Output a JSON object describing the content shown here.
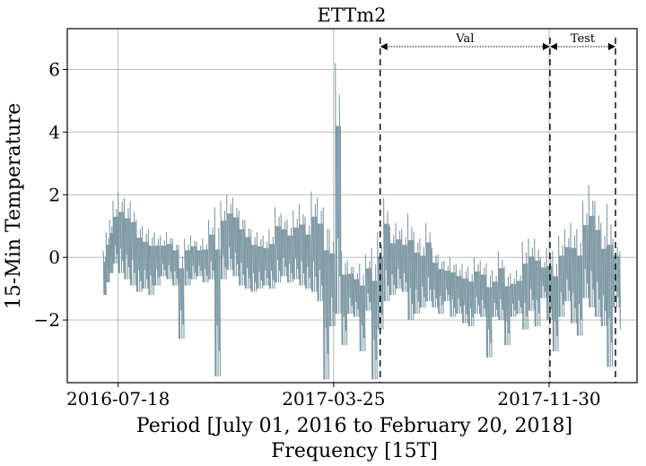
{
  "chart_data": {
    "type": "line",
    "title": "ETTm2",
    "xlabel": "Period [July 01, 2016 to February 20, 2018]",
    "xlabel2": "Frequency [15T]",
    "ylabel": "15-Min Temperature",
    "grid": true,
    "x_range": [
      "2016-07-01",
      "2018-02-20"
    ],
    "xlim": [
      "2016-05-20",
      "2018-03-12"
    ],
    "ylim": [
      -4.0,
      7.3
    ],
    "x_ticks": [
      "2016-07-18",
      "2017-03-25",
      "2017-11-30"
    ],
    "y_ticks": [
      -2,
      0,
      2,
      4,
      6
    ],
    "y_tick_labels": [
      "−2",
      "0",
      "2",
      "4",
      "6"
    ],
    "series": [
      {
        "color": "#7f9aa5",
        "x": [
          "2016-07-01",
          "2016-07-04",
          "2016-07-08",
          "2016-07-12",
          "2016-07-18",
          "2016-07-25",
          "2016-08-01",
          "2016-08-08",
          "2016-08-15",
          "2016-08-22",
          "2016-08-29",
          "2016-09-05",
          "2016-09-12",
          "2016-09-19",
          "2016-09-26",
          "2016-10-03",
          "2016-10-10",
          "2016-10-17",
          "2016-10-24",
          "2016-10-31",
          "2016-11-07",
          "2016-11-14",
          "2016-11-21",
          "2016-11-28",
          "2016-12-05",
          "2016-12-12",
          "2016-12-19",
          "2016-12-26",
          "2017-01-02",
          "2017-01-09",
          "2017-01-16",
          "2017-01-23",
          "2017-01-30",
          "2017-02-06",
          "2017-02-13",
          "2017-02-20",
          "2017-02-27",
          "2017-03-06",
          "2017-03-13",
          "2017-03-20",
          "2017-03-27",
          "2017-04-03",
          "2017-04-10",
          "2017-04-17",
          "2017-04-24",
          "2017-05-01",
          "2017-05-08",
          "2017-05-15",
          "2017-05-22",
          "2017-05-29",
          "2017-06-05",
          "2017-06-12",
          "2017-06-19",
          "2017-06-26",
          "2017-07-03",
          "2017-07-10",
          "2017-07-17",
          "2017-07-24",
          "2017-07-31",
          "2017-08-07",
          "2017-08-14",
          "2017-08-21",
          "2017-08-28",
          "2017-09-04",
          "2017-09-11",
          "2017-09-18",
          "2017-09-25",
          "2017-10-02",
          "2017-10-09",
          "2017-10-16",
          "2017-10-23",
          "2017-10-30",
          "2017-11-06",
          "2017-11-13",
          "2017-11-20",
          "2017-11-27",
          "2017-12-04",
          "2017-12-11",
          "2017-12-18",
          "2017-12-25",
          "2018-01-01",
          "2018-01-08",
          "2018-01-15",
          "2018-01-22",
          "2018-01-29",
          "2018-02-05",
          "2018-02-12",
          "2018-02-20"
        ],
        "upper": [
          0.2,
          0.8,
          1.2,
          1.8,
          2.1,
          1.9,
          1.8,
          1.2,
          1.0,
          0.9,
          0.8,
          0.7,
          0.8,
          0.6,
          0.4,
          0.6,
          0.7,
          0.5,
          0.6,
          1.2,
          1.6,
          1.8,
          2.0,
          1.9,
          1.5,
          1.2,
          0.9,
          0.8,
          0.7,
          0.9,
          1.6,
          1.4,
          1.2,
          1.5,
          1.7,
          1.3,
          2.1,
          1.9,
          1.6,
          0.9,
          6.2,
          0.2,
          -0.1,
          -0.3,
          -0.2,
          0.1,
          0.3,
          0.8,
          1.9,
          1.0,
          1.1,
          0.9,
          1.4,
          0.8,
          0.6,
          1.1,
          0.3,
          0.1,
          -0.1,
          0.0,
          -0.2,
          -0.2,
          -0.3,
          0.0,
          -0.1,
          -0.2,
          -0.4,
          0.2,
          -0.3,
          -0.5,
          -0.4,
          0.5,
          0.6,
          0.6,
          0.0,
          0.3,
          0.2,
          0.7,
          0.9,
          1.1,
          0.9,
          1.8,
          2.3,
          1.8,
          1.1,
          1.7,
          0.6,
          0.2
        ],
        "lower": [
          -1.2,
          -0.8,
          -0.5,
          -0.2,
          -0.5,
          -0.7,
          -0.9,
          -1.1,
          -1.0,
          -1.2,
          -0.9,
          -0.6,
          -0.7,
          -0.9,
          -2.6,
          -0.9,
          -0.7,
          -0.6,
          -0.8,
          -0.7,
          -3.8,
          -0.7,
          -0.4,
          -0.6,
          -0.9,
          -1.0,
          -1.1,
          -1.0,
          -0.9,
          -1.0,
          -0.8,
          -0.6,
          -0.8,
          -0.7,
          -0.9,
          -1.0,
          -1.1,
          -1.4,
          -3.9,
          -2.2,
          -1.8,
          -2.8,
          -1.8,
          -1.9,
          -3.0,
          -1.7,
          -3.9,
          -2.3,
          -1.4,
          -1.2,
          -1.0,
          -1.1,
          -2.0,
          -1.8,
          -1.6,
          -1.4,
          -1.6,
          -1.8,
          -1.4,
          -1.9,
          -1.8,
          -2.1,
          -2.2,
          -1.8,
          -1.9,
          -3.2,
          -1.9,
          -2.0,
          -2.8,
          -1.9,
          -1.8,
          -2.3,
          -1.7,
          -2.2,
          -1.3,
          -2.0,
          -3.0,
          -1.9,
          -1.4,
          -2.1,
          -2.5,
          -1.3,
          -1.6,
          -1.9,
          -2.2,
          -3.5,
          -1.6,
          -2.3
        ]
      }
    ],
    "annotations": {
      "val_label": "Val",
      "test_label": "Test",
      "val_start": "2017-05-18",
      "val_end": "2017-12-01",
      "test_end": "2018-02-15"
    }
  }
}
